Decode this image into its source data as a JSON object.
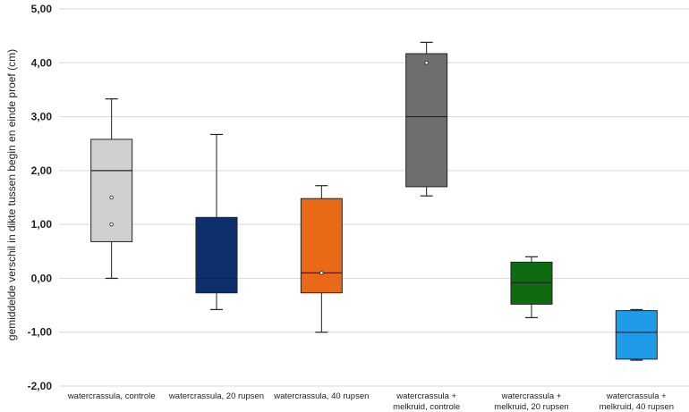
{
  "chart_data": {
    "type": "box",
    "title": "",
    "xlabel": "",
    "ylabel": "gemiddelde verschil in dikte tussen begin en einde proef (cm)",
    "ylim": [
      -2,
      5
    ],
    "yticks": [
      "5,00",
      "4,00",
      "3,00",
      "2,00",
      "1,00",
      "0,00",
      "-1,00",
      "-2,00"
    ],
    "grid": true,
    "categories": [
      [
        "watercrassula, controle"
      ],
      [
        "watercrassula, 20 rupsen"
      ],
      [
        "watercrassula, 40 rupsen"
      ],
      [
        "watercrassula +",
        "melkruid, controle"
      ],
      [
        "watercrassula +",
        "melkruid, 20 rupsen"
      ],
      [
        "watercrassula +",
        "melkruid, 40 rupsen"
      ]
    ],
    "boxes": [
      {
        "min": 0.0,
        "q1": 0.68,
        "median": 2.0,
        "q3": 2.58,
        "max": 3.33,
        "points": [
          1.5,
          1.0
        ],
        "color": "#d0d0d0"
      },
      {
        "min": -0.58,
        "q1": -0.27,
        "median": 0.0,
        "q3": 1.13,
        "max": 2.67,
        "points": [],
        "color": "#0d2f6b"
      },
      {
        "min": -1.0,
        "q1": -0.27,
        "median": 0.1,
        "q3": 1.48,
        "max": 1.72,
        "points": [
          0.1
        ],
        "color": "#e86a17"
      },
      {
        "min": 1.53,
        "q1": 1.7,
        "median": 3.0,
        "q3": 4.17,
        "max": 4.38,
        "points": [
          4.0
        ],
        "color": "#6e6e6e"
      },
      {
        "min": -0.73,
        "q1": -0.48,
        "median": -0.08,
        "q3": 0.3,
        "max": 0.4,
        "points": [],
        "color": "#0e6b12"
      },
      {
        "min": -1.52,
        "q1": -1.5,
        "median": -1.0,
        "q3": -0.6,
        "max": -0.58,
        "points": [],
        "color": "#1f9ce8"
      }
    ]
  }
}
